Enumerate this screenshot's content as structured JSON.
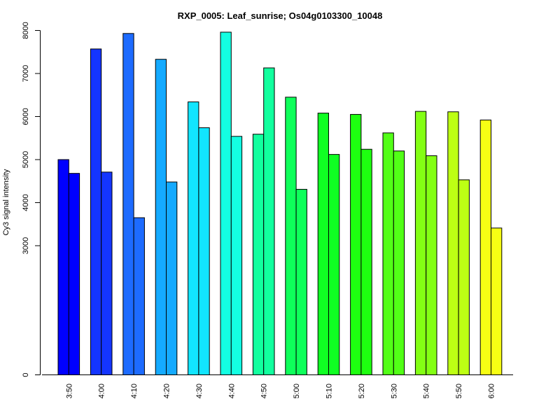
{
  "chart_data": {
    "type": "bar",
    "title": "RXP_0005: Leaf_sunrise; Os04g0103300_10048",
    "xlabel": "",
    "ylabel": "Cy3 signal intensity",
    "ylim": [
      0,
      8000
    ],
    "yticks": [
      0,
      3000,
      4000,
      5000,
      6000,
      7000,
      8000
    ],
    "grid": false,
    "legend": "none",
    "categories": [
      "3:50",
      "4:00",
      "4:10",
      "4:20",
      "4:30",
      "4:40",
      "4:50",
      "5:00",
      "5:10",
      "5:20",
      "5:30",
      "5:40",
      "5:50",
      "6:00"
    ],
    "series": [
      {
        "values": [
          5000,
          7570,
          7930,
          7330,
          6340,
          7960,
          5590,
          6450,
          6080,
          6050,
          5620,
          6120,
          6110,
          5920
        ]
      },
      {
        "values": [
          4680,
          4710,
          3650,
          4480,
          5740,
          5540,
          7130,
          4310,
          5120,
          5240,
          5200,
          5090,
          4530,
          3410
        ]
      }
    ],
    "colors": [
      "#0000FF",
      "#1435FF",
      "#1D6BFF",
      "#15AAFF",
      "#12E5FF",
      "#14FFE2",
      "#12FF9E",
      "#0EFF5A",
      "#10FF23",
      "#1EFF10",
      "#52FF17",
      "#83FF14",
      "#BDFF14",
      "#F7FF14"
    ]
  }
}
